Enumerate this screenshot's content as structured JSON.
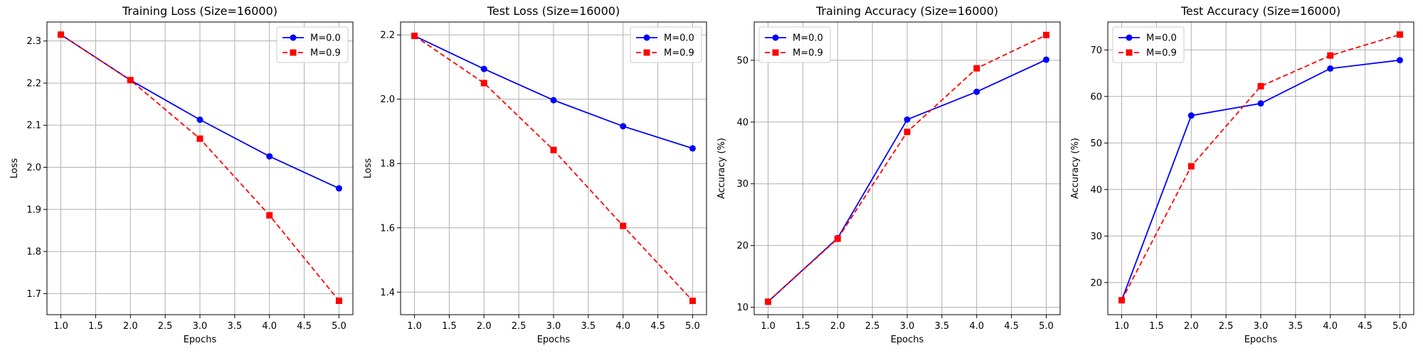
{
  "figure": {
    "background": "#ffffff"
  },
  "chart_data": [
    {
      "type": "line",
      "title": "Training Loss (Size=16000)",
      "xlabel": "Epochs",
      "ylabel": "Loss",
      "xlim": [
        0.8,
        5.2
      ],
      "ylim": [
        1.65,
        2.345
      ],
      "xticks": [
        "1.0",
        "1.5",
        "2.0",
        "2.5",
        "3.0",
        "3.5",
        "4.0",
        "4.5",
        "5.0"
      ],
      "yticks": [
        "1.7",
        "1.8",
        "1.9",
        "2.0",
        "2.1",
        "2.2",
        "2.3"
      ],
      "grid": true,
      "legend": "upper right",
      "x": [
        1,
        2,
        3,
        4,
        5
      ],
      "series": [
        {
          "name": "M=0.0",
          "values": [
            2.315,
            2.207,
            2.113,
            2.026,
            1.95
          ],
          "color": "#0000ff",
          "marker": "circle",
          "dashed": false
        },
        {
          "name": "M=0.9",
          "values": [
            2.315,
            2.207,
            2.068,
            1.886,
            1.683
          ],
          "color": "#ff0000",
          "marker": "square",
          "dashed": true
        }
      ]
    },
    {
      "type": "line",
      "title": "Test Loss (Size=16000)",
      "xlabel": "Epochs",
      "ylabel": "Loss",
      "xlim": [
        0.8,
        5.2
      ],
      "ylim": [
        1.33,
        2.24
      ],
      "xticks": [
        "1.0",
        "1.5",
        "2.0",
        "2.5",
        "3.0",
        "3.5",
        "4.0",
        "4.5",
        "5.0"
      ],
      "yticks": [
        "1.4",
        "1.6",
        "1.8",
        "2.0",
        "2.2"
      ],
      "grid": true,
      "legend": "upper right",
      "x": [
        1,
        2,
        3,
        4,
        5
      ],
      "series": [
        {
          "name": "M=0.0",
          "values": [
            2.197,
            2.094,
            1.997,
            1.916,
            1.847
          ],
          "color": "#0000ff",
          "marker": "circle",
          "dashed": false
        },
        {
          "name": "M=0.9",
          "values": [
            2.197,
            2.05,
            1.842,
            1.606,
            1.373
          ],
          "color": "#ff0000",
          "marker": "square",
          "dashed": true
        }
      ]
    },
    {
      "type": "line",
      "title": "Training Accuracy (Size=16000)",
      "xlabel": "Epochs",
      "ylabel": "Accuracy (%)",
      "xlim": [
        0.8,
        5.2
      ],
      "ylim": [
        8.8,
        56.2
      ],
      "xticks": [
        "1.0",
        "1.5",
        "2.0",
        "2.5",
        "3.0",
        "3.5",
        "4.0",
        "4.5",
        "5.0"
      ],
      "yticks": [
        "10",
        "20",
        "30",
        "40",
        "50"
      ],
      "grid": true,
      "legend": "upper left",
      "x": [
        1,
        2,
        3,
        4,
        5
      ],
      "series": [
        {
          "name": "M=0.0",
          "values": [
            10.9,
            21.2,
            40.4,
            44.9,
            50.1
          ],
          "color": "#0000ff",
          "marker": "circle",
          "dashed": false
        },
        {
          "name": "M=0.9",
          "values": [
            10.9,
            21.1,
            38.4,
            48.7,
            54.1
          ],
          "color": "#ff0000",
          "marker": "square",
          "dashed": true
        }
      ]
    },
    {
      "type": "line",
      "title": "Test Accuracy (Size=16000)",
      "xlabel": "Epochs",
      "ylabel": "Accuracy (%)",
      "xlim": [
        0.8,
        5.2
      ],
      "ylim": [
        13.1,
        76.0
      ],
      "xticks": [
        "1.0",
        "1.5",
        "2.0",
        "2.5",
        "3.0",
        "3.5",
        "4.0",
        "4.5",
        "5.0"
      ],
      "yticks": [
        "20",
        "30",
        "40",
        "50",
        "60",
        "70"
      ],
      "grid": true,
      "legend": "upper left",
      "x": [
        1,
        2,
        3,
        4,
        5
      ],
      "series": [
        {
          "name": "M=0.0",
          "values": [
            16.2,
            55.9,
            58.5,
            66.0,
            67.8
          ],
          "color": "#0000ff",
          "marker": "circle",
          "dashed": false
        },
        {
          "name": "M=0.9",
          "values": [
            16.2,
            45.0,
            62.2,
            68.8,
            73.3
          ],
          "color": "#ff0000",
          "marker": "square",
          "dashed": true
        }
      ]
    }
  ]
}
